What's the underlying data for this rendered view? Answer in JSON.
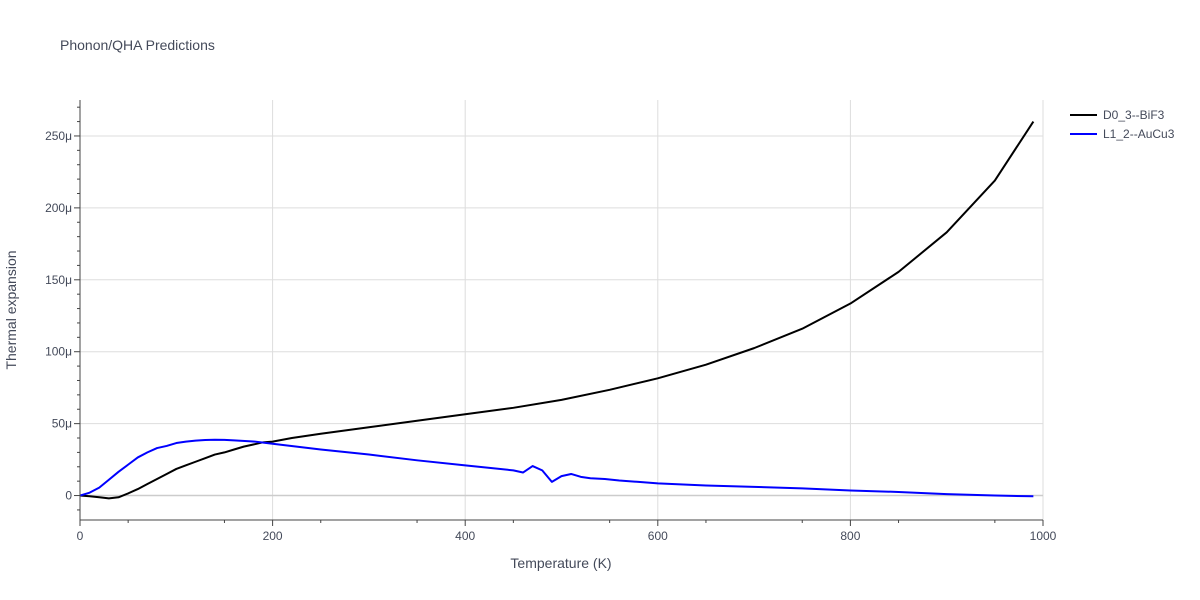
{
  "chart_data": {
    "type": "line",
    "title": "Phonon/QHA Predictions",
    "xlabel": "Temperature (K)",
    "ylabel": "Thermal expansion",
    "xlim": [
      0,
      1000
    ],
    "ylim": [
      -1.7e-05,
      0.000275
    ],
    "x_ticks": [
      0,
      200,
      400,
      600,
      800,
      1000
    ],
    "x_tick_labels": [
      "0",
      "200",
      "400",
      "600",
      "800",
      "1000"
    ],
    "y_ticks": [
      0,
      5e-05,
      0.0001,
      0.00015,
      0.0002,
      0.00025
    ],
    "y_tick_labels": [
      "0",
      "50μ",
      "100μ",
      "150μ",
      "200μ",
      "250μ"
    ],
    "grid": true,
    "legend_position": "top-right",
    "series": [
      {
        "name": "D0_3--BiF3",
        "color": "#000000",
        "x": [
          0,
          10,
          20,
          30,
          40,
          50,
          60,
          70,
          80,
          90,
          100,
          110,
          120,
          130,
          140,
          150,
          160,
          170,
          180,
          190,
          200,
          220,
          250,
          300,
          350,
          400,
          450,
          500,
          550,
          600,
          650,
          700,
          750,
          800,
          850,
          900,
          950,
          990
        ],
        "y": [
          0,
          -5e-07,
          -1.2e-06,
          -2e-06,
          -1.2e-06,
          1.5e-06,
          4.5e-06,
          8e-06,
          1.15e-05,
          1.5e-05,
          1.85e-05,
          2.1e-05,
          2.35e-05,
          2.6e-05,
          2.85e-05,
          3e-05,
          3.2e-05,
          3.4e-05,
          3.55e-05,
          3.7e-05,
          3.75e-05,
          4e-05,
          4.3e-05,
          4.75e-05,
          5.2e-05,
          5.65e-05,
          6.1e-05,
          6.65e-05,
          7.35e-05,
          8.15e-05,
          9.1e-05,
          0.0001025,
          0.000116,
          0.0001335,
          0.0001555,
          0.000183,
          0.000219,
          0.00026
        ]
      },
      {
        "name": "L1_2--AuCu3",
        "color": "#0000ff",
        "x": [
          0,
          10,
          20,
          30,
          40,
          50,
          60,
          70,
          80,
          90,
          100,
          110,
          120,
          130,
          140,
          150,
          160,
          180,
          200,
          250,
          300,
          350,
          400,
          450,
          460,
          470,
          480,
          490,
          500,
          510,
          520,
          530,
          545,
          560,
          580,
          600,
          650,
          700,
          750,
          800,
          850,
          900,
          950,
          990
        ],
        "y": [
          0,
          2e-06,
          5.5e-06,
          1.1e-05,
          1.65e-05,
          2.15e-05,
          2.65e-05,
          3e-05,
          3.3e-05,
          3.45e-05,
          3.65e-05,
          3.75e-05,
          3.82e-05,
          3.86e-05,
          3.88e-05,
          3.87e-05,
          3.84e-05,
          3.76e-05,
          3.6e-05,
          3.2e-05,
          2.85e-05,
          2.45e-05,
          2.1e-05,
          1.75e-05,
          1.6e-05,
          2.05e-05,
          1.75e-05,
          9.5e-06,
          1.35e-05,
          1.5e-05,
          1.3e-05,
          1.2e-05,
          1.15e-05,
          1.05e-05,
          9.5e-06,
          8.5e-06,
          7e-06,
          6e-06,
          5e-06,
          3.5e-06,
          2.5e-06,
          1e-06,
          0.0,
          -5e-07
        ]
      }
    ]
  }
}
